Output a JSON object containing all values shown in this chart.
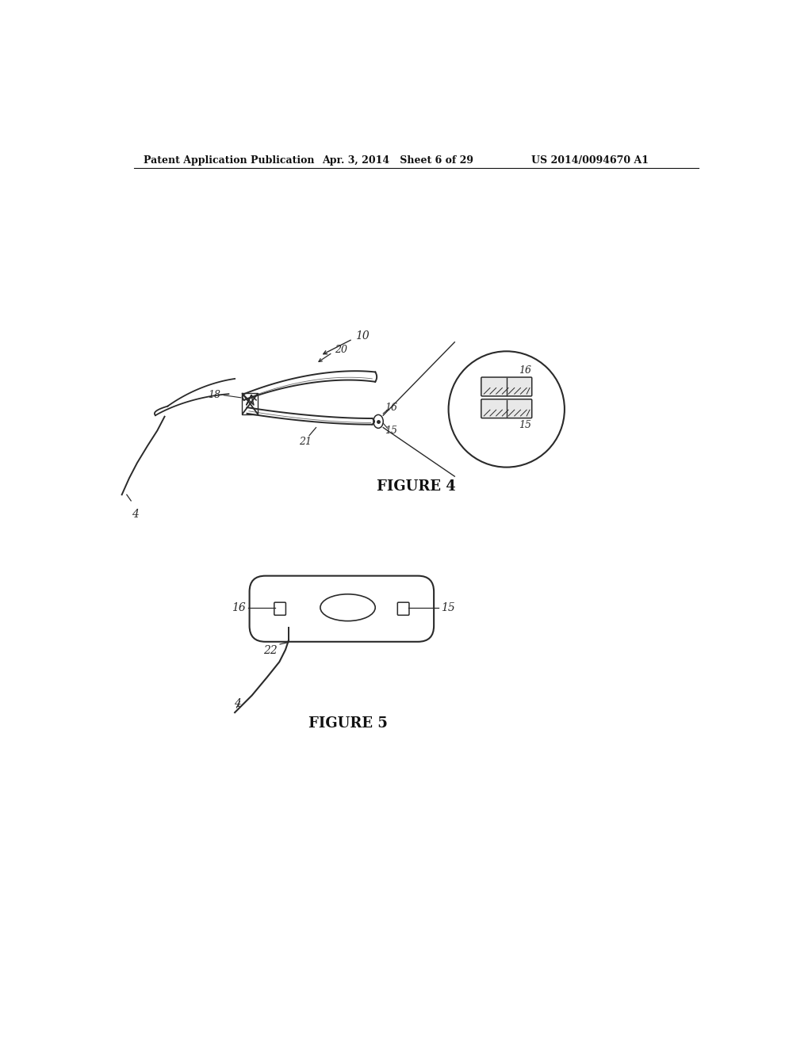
{
  "bg_color": "#ffffff",
  "line_color": "#2a2a2a",
  "header_left": "Patent Application Publication",
  "header_mid": "Apr. 3, 2014   Sheet 6 of 29",
  "header_right": "US 2014/0094670 A1",
  "fig4_label": "FIGURE 4",
  "fig5_label": "FIGURE 5",
  "label_10": "10",
  "label_20": "20",
  "label_16a": "16",
  "label_15a": "15",
  "label_18": "18",
  "label_21": "21",
  "label_4a": "4",
  "label_16b": "16",
  "label_15b": "15",
  "label_22": "22",
  "label_4b": "4",
  "label_16c": "16",
  "label_15c": "15"
}
